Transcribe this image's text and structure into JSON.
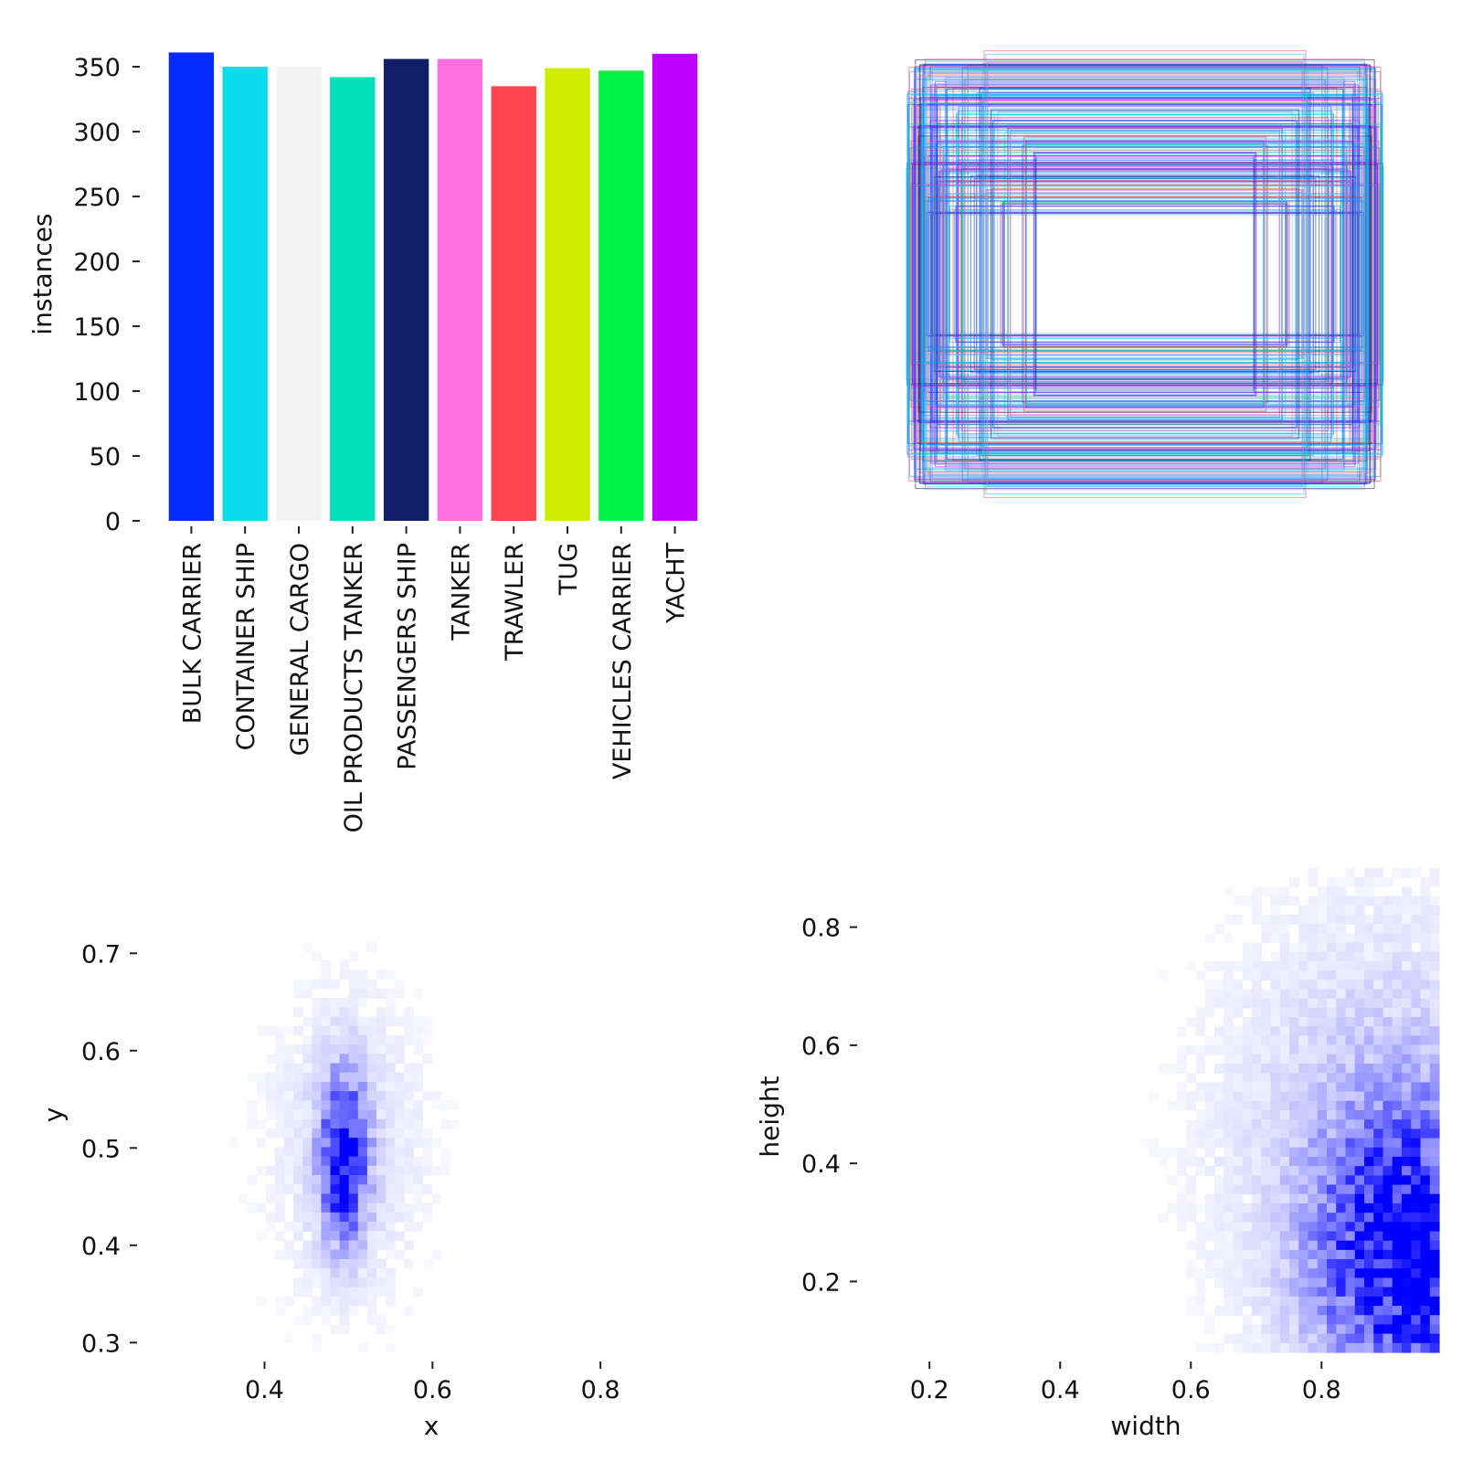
{
  "chart_data": [
    {
      "type": "bar",
      "name": "class-instances",
      "title": "",
      "xlabel": "",
      "ylabel": "instances",
      "ylim": [
        0,
        362
      ],
      "yticks": [
        0,
        50,
        100,
        150,
        200,
        250,
        300,
        350
      ],
      "categories": [
        "BULK CARRIER",
        "CONTAINER SHIP",
        "GENERAL CARGO",
        "OIL PRODUCTS TANKER",
        "PASSENGERS SHIP",
        "TANKER",
        "TRAWLER",
        "TUG",
        "VEHICLES CARRIER",
        "YACHT"
      ],
      "values": [
        361,
        350,
        350,
        342,
        356,
        356,
        335,
        349,
        347,
        360
      ],
      "colors": [
        "#042AFF",
        "#0BDBEB",
        "#F3F3F3",
        "#00DFB7",
        "#111F68",
        "#FF6FDD",
        "#FF444F",
        "#CCED00",
        "#00F344",
        "#BD00FF"
      ],
      "grid": false
    },
    {
      "type": "box-overlay",
      "name": "bounding-box-outlines",
      "title": "",
      "description_units": "normalized box width/height in image units",
      "boxes": [
        {
          "w": 0.98,
          "h": 0.94
        },
        {
          "w": 0.96,
          "h": 0.92
        },
        {
          "w": 0.94,
          "h": 0.9
        },
        {
          "w": 0.92,
          "h": 0.88
        },
        {
          "w": 0.9,
          "h": 0.85
        },
        {
          "w": 0.86,
          "h": 0.8
        },
        {
          "w": 0.8,
          "h": 0.74
        },
        {
          "w": 0.98,
          "h": 0.7
        },
        {
          "w": 0.96,
          "h": 0.64
        },
        {
          "w": 0.94,
          "h": 0.58
        },
        {
          "w": 0.92,
          "h": 0.52
        },
        {
          "w": 0.9,
          "h": 0.46
        },
        {
          "w": 0.97,
          "h": 0.4
        },
        {
          "w": 0.95,
          "h": 0.34
        },
        {
          "w": 0.93,
          "h": 0.28
        },
        {
          "w": 0.88,
          "h": 0.62
        },
        {
          "w": 0.84,
          "h": 0.56
        },
        {
          "w": 0.78,
          "h": 0.5
        },
        {
          "w": 0.72,
          "h": 0.44
        },
        {
          "w": 0.66,
          "h": 0.38
        },
        {
          "w": 0.6,
          "h": 0.32
        },
        {
          "w": 0.99,
          "h": 0.5
        },
        {
          "w": 0.97,
          "h": 0.6
        },
        {
          "w": 0.95,
          "h": 0.76
        },
        {
          "w": 0.89,
          "h": 0.68
        },
        {
          "w": 0.83,
          "h": 0.86
        },
        {
          "w": 0.76,
          "h": 0.92
        },
        {
          "w": 0.7,
          "h": 0.82
        },
        {
          "w": 0.64,
          "h": 0.72
        },
        {
          "w": 0.58,
          "h": 0.66
        },
        {
          "w": 0.52,
          "h": 0.6
        },
        {
          "w": 0.46,
          "h": 0.54
        },
        {
          "w": 0.91,
          "h": 0.36
        },
        {
          "w": 0.87,
          "h": 0.42
        },
        {
          "w": 0.85,
          "h": 0.48
        },
        {
          "w": 0.81,
          "h": 0.3
        },
        {
          "w": 0.99,
          "h": 0.82
        },
        {
          "w": 0.98,
          "h": 0.78
        },
        {
          "w": 0.93,
          "h": 0.96
        },
        {
          "w": 0.68,
          "h": 0.98
        }
      ]
    },
    {
      "type": "heatmap",
      "name": "xy-center-density",
      "title": "",
      "xlabel": "x",
      "ylabel": "y",
      "xlim": [
        0.27,
        0.95
      ],
      "ylim": [
        0.29,
        0.75
      ],
      "xticks": [
        0.4,
        0.6,
        0.8
      ],
      "yticks": [
        0.3,
        0.4,
        0.5,
        0.6,
        0.7
      ],
      "tick_labels_x": [
        "0.4",
        "0.6",
        "0.8"
      ],
      "tick_labels_y": [
        "0.3",
        "0.4",
        "0.5",
        "0.6",
        "0.7"
      ],
      "peak": {
        "x": 0.495,
        "y": 0.49
      },
      "spread": {
        "x": 0.018,
        "y": 0.055
      },
      "cmap": "white-to-blue",
      "grid": false
    },
    {
      "type": "heatmap",
      "name": "width-height-density",
      "title": "",
      "xlabel": "width",
      "ylabel": "height",
      "xlim": [
        0.12,
        0.98
      ],
      "ylim": [
        0.08,
        0.9
      ],
      "xticks": [
        0.2,
        0.4,
        0.6,
        0.8
      ],
      "yticks": [
        0.2,
        0.4,
        0.6,
        0.8
      ],
      "tick_labels_x": [
        "0.2",
        "0.4",
        "0.6",
        "0.8"
      ],
      "tick_labels_y": [
        "0.2",
        "0.4",
        "0.6",
        "0.8"
      ],
      "peak": {
        "x": 0.93,
        "y": 0.25
      },
      "spread": {
        "x": 0.09,
        "y": 0.16
      },
      "cmap": "white-to-blue",
      "grid": false
    }
  ]
}
